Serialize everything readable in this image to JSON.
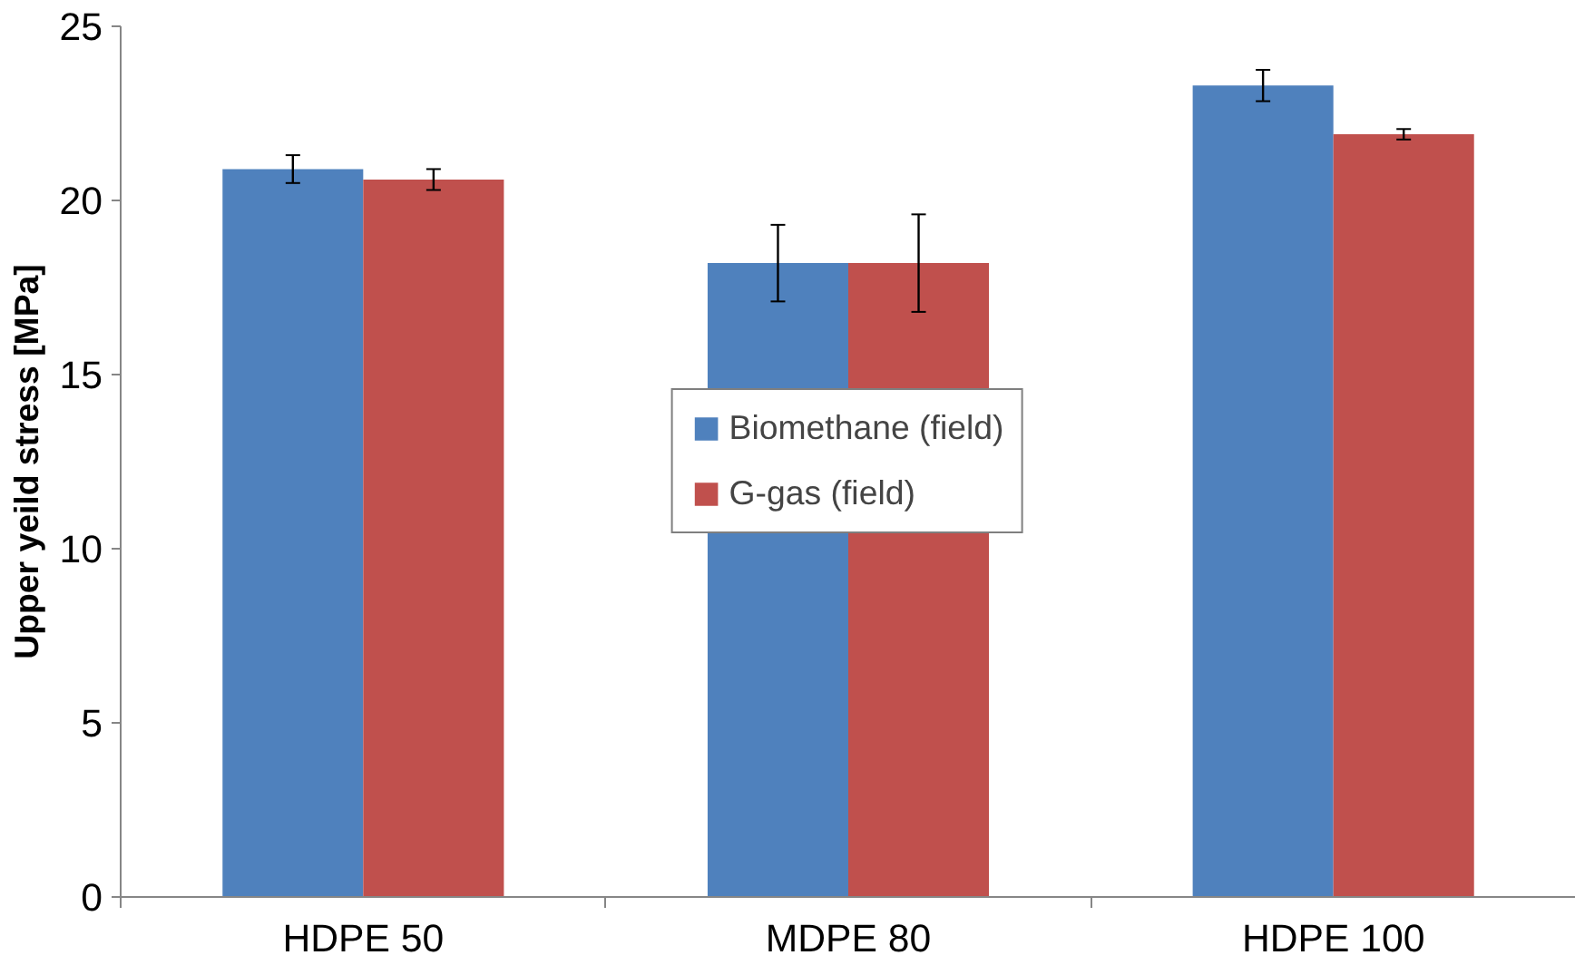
{
  "chart_data": {
    "type": "bar",
    "ylabel": "Upper yeild stress [MPa]",
    "categories": [
      "HDPE 50",
      "MDPE 80",
      "HDPE 100"
    ],
    "series": [
      {
        "name": "Biomethane (field)",
        "color": "#4f81bd",
        "values": [
          20.9,
          18.2,
          23.3
        ],
        "errors": [
          0.4,
          1.1,
          0.45
        ]
      },
      {
        "name": "G-gas (field)",
        "color": "#c0504d",
        "values": [
          20.6,
          18.2,
          21.9
        ],
        "errors": [
          0.3,
          1.4,
          0.15
        ]
      }
    ],
    "ylim": [
      0,
      25
    ],
    "yticks": [
      0,
      5,
      10,
      15,
      20,
      25
    ],
    "grid": false,
    "legend": "center"
  }
}
